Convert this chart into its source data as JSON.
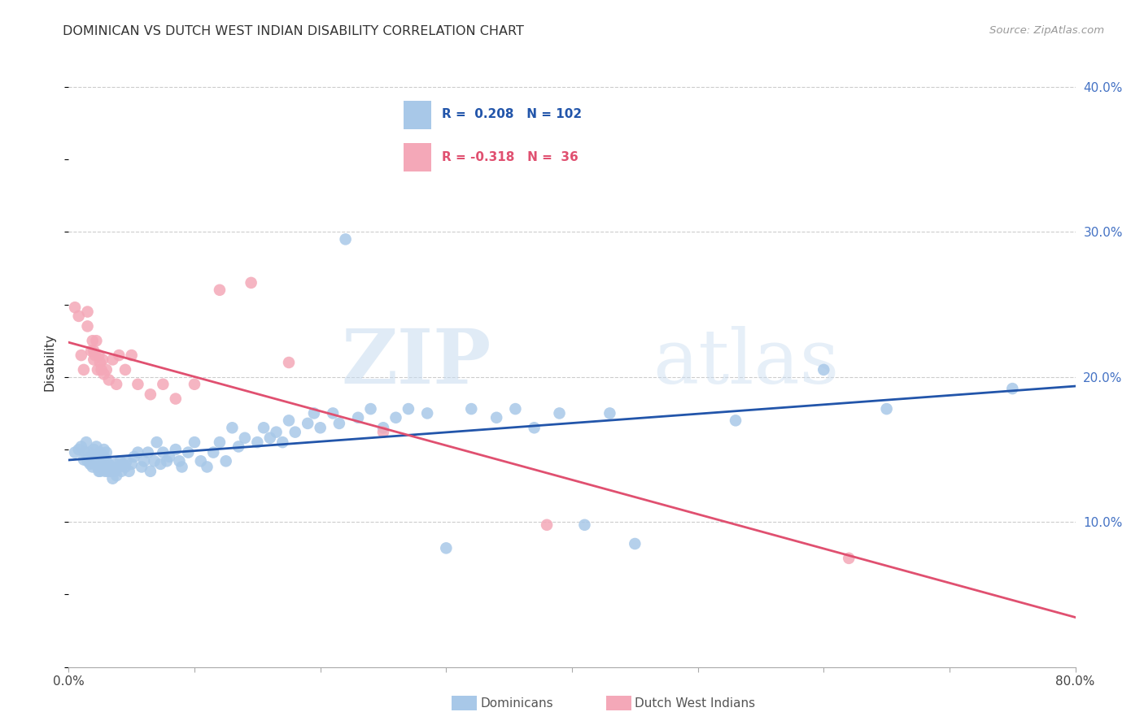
{
  "title": "DOMINICAN VS DUTCH WEST INDIAN DISABILITY CORRELATION CHART",
  "source": "Source: ZipAtlas.com",
  "ylabel": "Disability",
  "xlim": [
    0.0,
    0.8
  ],
  "ylim": [
    0.0,
    0.42
  ],
  "xticks": [
    0.0,
    0.1,
    0.2,
    0.3,
    0.4,
    0.5,
    0.6,
    0.7,
    0.8
  ],
  "xticklabels": [
    "0.0%",
    "",
    "",
    "",
    "",
    "",
    "",
    "",
    "80.0%"
  ],
  "yticks_right": [
    0.1,
    0.2,
    0.3,
    0.4
  ],
  "yticklabels_right": [
    "10.0%",
    "20.0%",
    "30.0%",
    "40.0%"
  ],
  "blue_R": 0.208,
  "blue_N": 102,
  "pink_R": -0.318,
  "pink_N": 36,
  "blue_color": "#A8C8E8",
  "pink_color": "#F4A8B8",
  "blue_line_color": "#2255AA",
  "pink_line_color": "#E05070",
  "watermark_zip": "ZIP",
  "watermark_atlas": "atlas",
  "legend_label_blue": "Dominicans",
  "legend_label_pink": "Dutch West Indians",
  "blue_x": [
    0.005,
    0.008,
    0.01,
    0.012,
    0.013,
    0.014,
    0.015,
    0.016,
    0.017,
    0.018,
    0.019,
    0.02,
    0.02,
    0.021,
    0.022,
    0.022,
    0.023,
    0.023,
    0.024,
    0.024,
    0.025,
    0.025,
    0.026,
    0.027,
    0.028,
    0.028,
    0.029,
    0.03,
    0.03,
    0.031,
    0.032,
    0.033,
    0.034,
    0.035,
    0.036,
    0.037,
    0.038,
    0.04,
    0.041,
    0.042,
    0.043,
    0.045,
    0.046,
    0.048,
    0.05,
    0.052,
    0.055,
    0.058,
    0.06,
    0.063,
    0.065,
    0.068,
    0.07,
    0.073,
    0.075,
    0.078,
    0.08,
    0.085,
    0.088,
    0.09,
    0.095,
    0.1,
    0.105,
    0.11,
    0.115,
    0.12,
    0.125,
    0.13,
    0.135,
    0.14,
    0.15,
    0.155,
    0.16,
    0.165,
    0.17,
    0.175,
    0.18,
    0.19,
    0.195,
    0.2,
    0.21,
    0.215,
    0.22,
    0.23,
    0.24,
    0.25,
    0.26,
    0.27,
    0.285,
    0.3,
    0.32,
    0.34,
    0.355,
    0.37,
    0.39,
    0.41,
    0.43,
    0.45,
    0.53,
    0.6,
    0.65,
    0.75
  ],
  "blue_y": [
    0.148,
    0.15,
    0.152,
    0.143,
    0.148,
    0.155,
    0.142,
    0.148,
    0.14,
    0.145,
    0.138,
    0.144,
    0.15,
    0.14,
    0.146,
    0.152,
    0.138,
    0.144,
    0.135,
    0.142,
    0.148,
    0.135,
    0.142,
    0.138,
    0.145,
    0.15,
    0.135,
    0.142,
    0.148,
    0.135,
    0.14,
    0.135,
    0.138,
    0.13,
    0.135,
    0.14,
    0.132,
    0.138,
    0.142,
    0.135,
    0.14,
    0.138,
    0.142,
    0.135,
    0.14,
    0.145,
    0.148,
    0.138,
    0.142,
    0.148,
    0.135,
    0.142,
    0.155,
    0.14,
    0.148,
    0.142,
    0.145,
    0.15,
    0.142,
    0.138,
    0.148,
    0.155,
    0.142,
    0.138,
    0.148,
    0.155,
    0.142,
    0.165,
    0.152,
    0.158,
    0.155,
    0.165,
    0.158,
    0.162,
    0.155,
    0.17,
    0.162,
    0.168,
    0.175,
    0.165,
    0.175,
    0.168,
    0.295,
    0.172,
    0.178,
    0.165,
    0.172,
    0.178,
    0.175,
    0.082,
    0.178,
    0.172,
    0.178,
    0.165,
    0.175,
    0.098,
    0.175,
    0.085,
    0.17,
    0.205,
    0.178,
    0.192
  ],
  "pink_x": [
    0.005,
    0.008,
    0.01,
    0.012,
    0.015,
    0.015,
    0.018,
    0.019,
    0.02,
    0.02,
    0.021,
    0.022,
    0.023,
    0.024,
    0.025,
    0.026,
    0.027,
    0.028,
    0.03,
    0.032,
    0.035,
    0.038,
    0.04,
    0.045,
    0.05,
    0.055,
    0.065,
    0.075,
    0.085,
    0.1,
    0.12,
    0.145,
    0.175,
    0.25,
    0.38,
    0.62
  ],
  "pink_y": [
    0.248,
    0.242,
    0.215,
    0.205,
    0.245,
    0.235,
    0.218,
    0.225,
    0.212,
    0.218,
    0.215,
    0.225,
    0.205,
    0.215,
    0.21,
    0.205,
    0.212,
    0.202,
    0.205,
    0.198,
    0.212,
    0.195,
    0.215,
    0.205,
    0.215,
    0.195,
    0.188,
    0.195,
    0.185,
    0.195,
    0.26,
    0.265,
    0.21,
    0.162,
    0.098,
    0.075
  ]
}
